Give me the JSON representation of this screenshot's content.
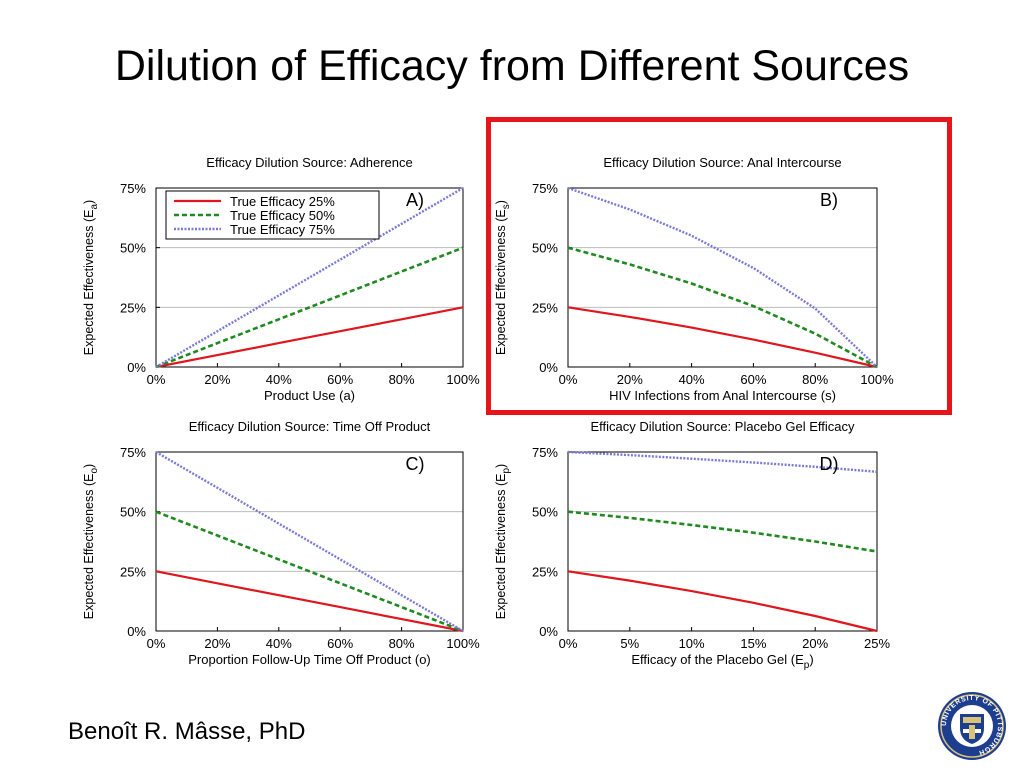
{
  "slide": {
    "title": "Dilution of Efficacy from Different Sources",
    "author": "Benoît R. Mâsse, PhD"
  },
  "logo": {
    "label": "UNIVERSITY OF PITTSBURGH"
  },
  "colors": {
    "true_25": "#e0161e",
    "true_50": "#1f8a1f",
    "true_75": "#7a7ad6",
    "highlight": "#e8141c",
    "grid": "#bdbdbd"
  },
  "legend": [
    "True Efficacy 25%",
    "True Efficacy 50%",
    "True Efficacy 75%"
  ],
  "chart_data": [
    {
      "id": "A",
      "type": "line",
      "title": "Efficacy Dilution Source: Adherence",
      "panel_label": "A)",
      "ylabel": "Expected Effectiveness (E",
      "ylabel_sub": "a",
      "xlabel": "Product Use (a)",
      "xlabel_sub": "",
      "xlabel_tail": "",
      "xlim": [
        0,
        100
      ],
      "ylim": [
        0,
        75
      ],
      "xticks": [
        0,
        20,
        40,
        60,
        80,
        100
      ],
      "xtick_labels": [
        "0%",
        "20%",
        "40%",
        "60%",
        "80%",
        "100%"
      ],
      "yticks": [
        0,
        25,
        50,
        75
      ],
      "ytick_labels": [
        "0%",
        "25%",
        "50%",
        "75%"
      ],
      "highlighted": false,
      "show_legend": true,
      "series": [
        {
          "name": "True Efficacy 25%",
          "x": [
            0,
            20,
            40,
            60,
            80,
            100
          ],
          "y": [
            0,
            5,
            10,
            15,
            20,
            25
          ]
        },
        {
          "name": "True Efficacy 50%",
          "x": [
            0,
            20,
            40,
            60,
            80,
            100
          ],
          "y": [
            0,
            10,
            20,
            30,
            40,
            50
          ]
        },
        {
          "name": "True Efficacy 75%",
          "x": [
            0,
            20,
            40,
            60,
            80,
            100
          ],
          "y": [
            0,
            15,
            30,
            45,
            60,
            75
          ]
        }
      ]
    },
    {
      "id": "B",
      "type": "line",
      "title": "Efficacy Dilution Source: Anal Intercourse",
      "panel_label": "B)",
      "ylabel": "Expected Effectiveness (E",
      "ylabel_sub": "s",
      "xlabel": "HIV Infections from Anal Intercourse (s)",
      "xlabel_sub": "",
      "xlabel_tail": "",
      "xlim": [
        0,
        100
      ],
      "ylim": [
        0,
        75
      ],
      "xticks": [
        0,
        20,
        40,
        60,
        80,
        100
      ],
      "xtick_labels": [
        "0%",
        "20%",
        "40%",
        "60%",
        "80%",
        "100%"
      ],
      "yticks": [
        0,
        25,
        50,
        75
      ],
      "ytick_labels": [
        "0%",
        "25%",
        "50%",
        "75%"
      ],
      "highlighted": true,
      "show_legend": false,
      "series": [
        {
          "name": "True Efficacy 25%",
          "x": [
            0,
            20,
            40,
            60,
            80,
            100
          ],
          "y": [
            25,
            21,
            16.5,
            11.5,
            6,
            0
          ]
        },
        {
          "name": "True Efficacy 50%",
          "x": [
            0,
            20,
            40,
            60,
            80,
            100
          ],
          "y": [
            50,
            43,
            35,
            25.5,
            14,
            0
          ]
        },
        {
          "name": "True Efficacy 75%",
          "x": [
            0,
            20,
            40,
            60,
            80,
            100
          ],
          "y": [
            75,
            66,
            55,
            41.5,
            24.5,
            0
          ]
        }
      ]
    },
    {
      "id": "C",
      "type": "line",
      "title": "Efficacy Dilution Source: Time Off Product",
      "panel_label": "C)",
      "ylabel": "Expected Effectiveness (E",
      "ylabel_sub": "o",
      "xlabel": "Proportion Follow-Up Time Off Product (o)",
      "xlabel_sub": "",
      "xlabel_tail": "",
      "xlim": [
        0,
        100
      ],
      "ylim": [
        0,
        75
      ],
      "xticks": [
        0,
        20,
        40,
        60,
        80,
        100
      ],
      "xtick_labels": [
        "0%",
        "20%",
        "40%",
        "60%",
        "80%",
        "100%"
      ],
      "yticks": [
        0,
        25,
        50,
        75
      ],
      "ytick_labels": [
        "0%",
        "25%",
        "50%",
        "75%"
      ],
      "highlighted": false,
      "show_legend": false,
      "series": [
        {
          "name": "True Efficacy 25%",
          "x": [
            0,
            20,
            40,
            60,
            80,
            100
          ],
          "y": [
            25,
            20,
            15,
            10,
            5,
            0
          ]
        },
        {
          "name": "True Efficacy 50%",
          "x": [
            0,
            20,
            40,
            60,
            80,
            100
          ],
          "y": [
            50,
            40,
            30,
            20,
            10,
            0
          ]
        },
        {
          "name": "True Efficacy 75%",
          "x": [
            0,
            20,
            40,
            60,
            80,
            100
          ],
          "y": [
            75,
            60,
            45,
            30,
            15,
            0
          ]
        }
      ]
    },
    {
      "id": "D",
      "type": "line",
      "title": "Efficacy Dilution Source: Placebo Gel Efficacy",
      "panel_label": "D)",
      "ylabel": "Expected Effectiveness (E",
      "ylabel_sub": "p",
      "xlabel": "Efficacy of the Placebo Gel (E",
      "xlabel_sub": "p",
      "xlabel_tail": ")",
      "xlim": [
        0,
        25
      ],
      "ylim": [
        0,
        75
      ],
      "xticks": [
        0,
        5,
        10,
        15,
        20,
        25
      ],
      "xtick_labels": [
        "0%",
        "5%",
        "10%",
        "15%",
        "20%",
        "25%"
      ],
      "yticks": [
        0,
        25,
        50,
        75
      ],
      "ytick_labels": [
        "0%",
        "25%",
        "50%",
        "75%"
      ],
      "highlighted": false,
      "show_legend": false,
      "series": [
        {
          "name": "True Efficacy 25%",
          "x": [
            0,
            5,
            10,
            15,
            20,
            25
          ],
          "y": [
            25,
            21.1,
            16.7,
            11.8,
            6.3,
            0
          ]
        },
        {
          "name": "True Efficacy 50%",
          "x": [
            0,
            5,
            10,
            15,
            20,
            25
          ],
          "y": [
            50,
            47.4,
            44.4,
            41.2,
            37.5,
            33.3
          ]
        },
        {
          "name": "True Efficacy 75%",
          "x": [
            0,
            5,
            10,
            15,
            20,
            25
          ],
          "y": [
            75,
            73.7,
            72.2,
            70.6,
            68.8,
            66.7
          ]
        }
      ]
    }
  ]
}
